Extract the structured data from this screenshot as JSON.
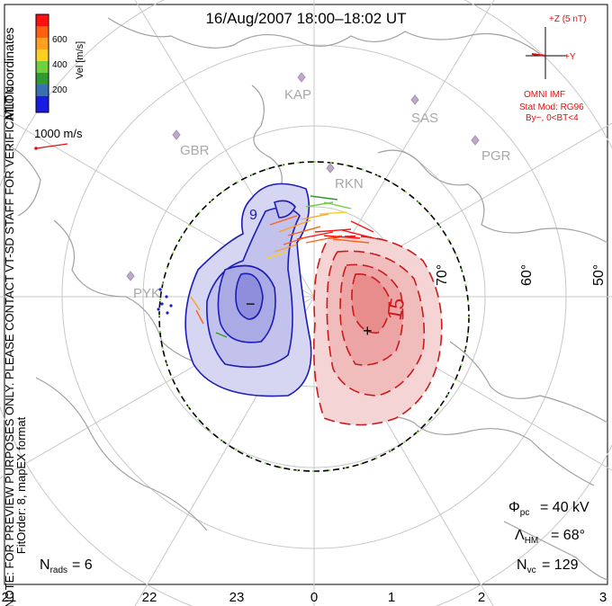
{
  "title": "16/Aug/2007 18:00–18:02 UT",
  "side_labels": {
    "coords": "MLT coordinates",
    "note": "NOTE: FOR PREVIEW PURPOSES ONLY. PLEASE CONTACT VT-SD STAFF FOR VERIFICATION.",
    "fit": "FitOrder: 8, mapEX format"
  },
  "velocity_scale": {
    "unit_label": "Vel [m/s]",
    "ticks": [
      "600",
      "400",
      "200"
    ],
    "colors": [
      "#ff1010",
      "#ff6010",
      "#ffa020",
      "#ffd020",
      "#70d040",
      "#2f9a2f",
      "#3a6fb0",
      "#1a1ae0"
    ],
    "reference_vector": "1000 m/s"
  },
  "radars": [
    "KAP",
    "SAS",
    "GBR",
    "PGR",
    "RKN",
    "PYK"
  ],
  "latitude_labels": [
    "70°",
    "60°",
    "50°"
  ],
  "mlt_labels": [
    "21",
    "22",
    "23",
    "0",
    "1",
    "2",
    "3"
  ],
  "contours": {
    "negative_label": "9",
    "positive_label": "15",
    "min_marker": "−",
    "max_marker": "+"
  },
  "imf": {
    "z_label": "+Z (5 nT)",
    "y_label": "+Y",
    "omni": "OMNI IMF",
    "stat_mod": "Stat Mod: RG96",
    "bin": "By−, 0<BT<4"
  },
  "stats": {
    "phi_pc": "= 40 kV",
    "lambda_hm": "= 68°",
    "n_vc": "= 129",
    "n_rads": "= 6"
  },
  "colors": {
    "negative": "#1c1cb8",
    "positive": "#cc1a1a",
    "grid": "#c8c8c8",
    "coast": "#a0a0a0",
    "heppner": "#000000",
    "boundary_dots": "#88dd44"
  }
}
